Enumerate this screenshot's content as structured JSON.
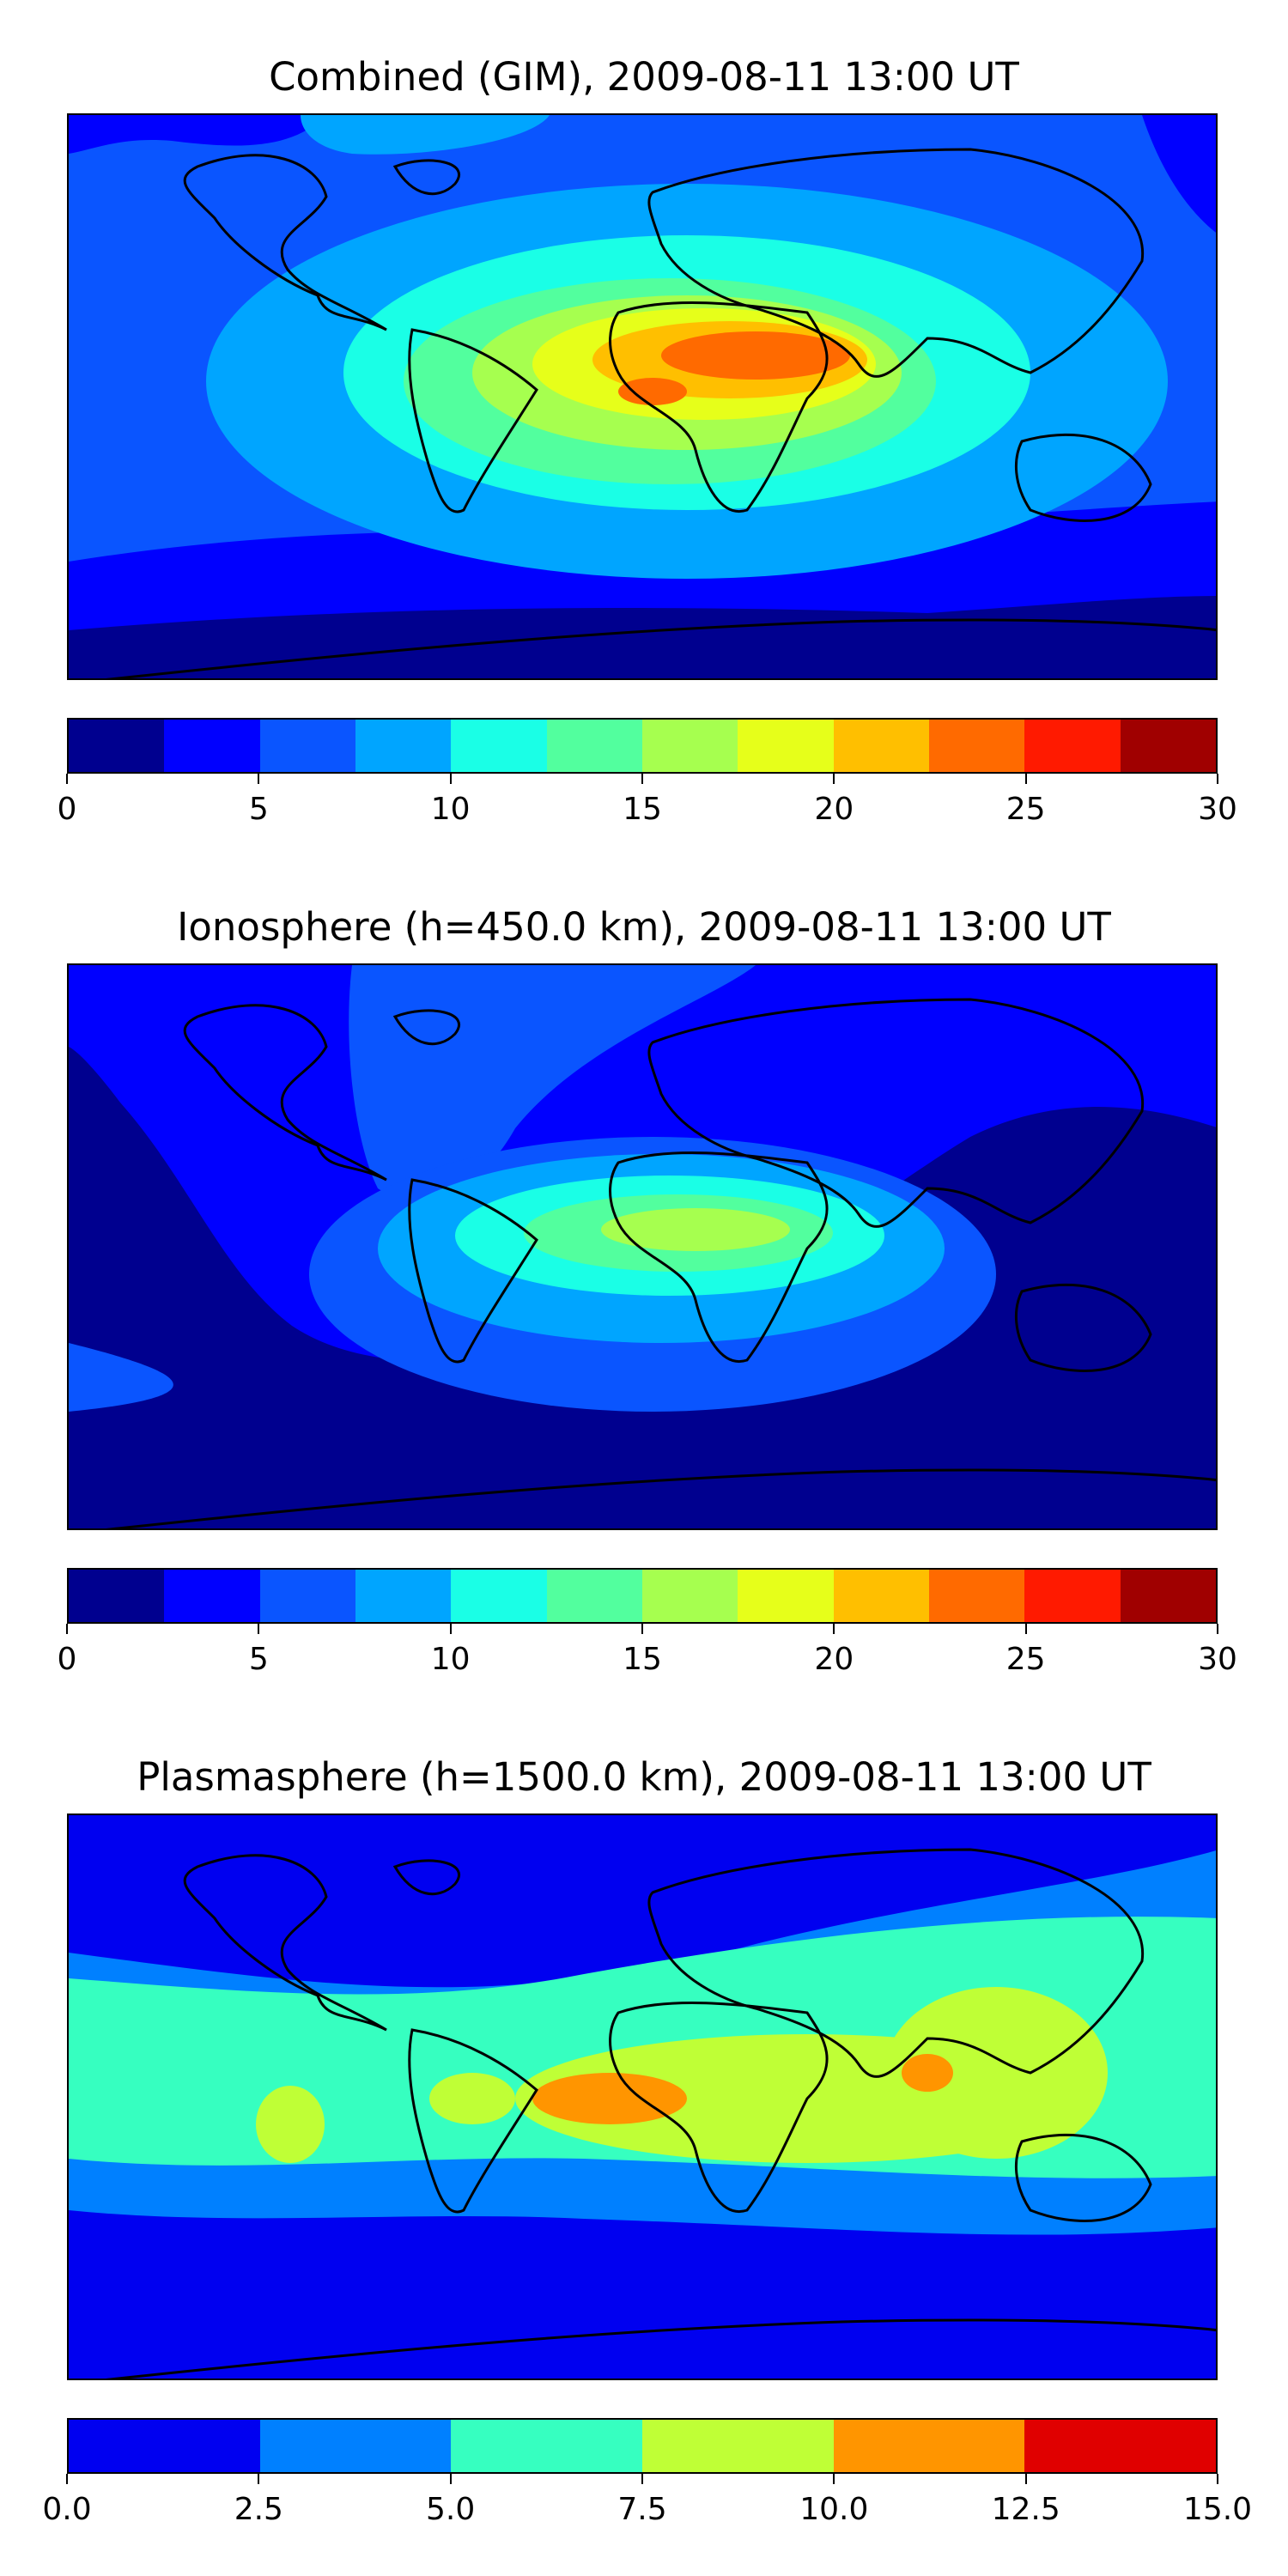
{
  "panels": [
    {
      "title": "Combined (GIM), 2009-08-11 13:00 UT",
      "colorbar": {
        "vmin": 0,
        "vmax": 30,
        "levels": [
          0,
          2.5,
          5,
          7.5,
          10,
          12.5,
          15,
          17.5,
          20,
          22.5,
          25,
          27.5,
          30
        ],
        "colors": [
          "#00008f",
          "#0000ff",
          "#0a55ff",
          "#00a5ff",
          "#1affe6",
          "#52ff9e",
          "#a6ff4f",
          "#e6ff1a",
          "#ffbf00",
          "#ff6a00",
          "#ff1a00",
          "#a00000"
        ],
        "tick_labels": [
          "0",
          "5",
          "10",
          "15",
          "20",
          "25",
          "30"
        ]
      }
    },
    {
      "title": "Ionosphere  (h=450.0 km), 2009-08-11 13:00 UT",
      "colorbar": {
        "vmin": 0,
        "vmax": 30,
        "levels": [
          0,
          2.5,
          5,
          7.5,
          10,
          12.5,
          15,
          17.5,
          20,
          22.5,
          25,
          27.5,
          30
        ],
        "colors": [
          "#00008f",
          "#0000ff",
          "#0a55ff",
          "#00a5ff",
          "#1affe6",
          "#52ff9e",
          "#a6ff4f",
          "#e6ff1a",
          "#ffbf00",
          "#ff6a00",
          "#ff1a00",
          "#a00000"
        ],
        "tick_labels": [
          "0",
          "5",
          "10",
          "15",
          "20",
          "25",
          "30"
        ]
      }
    },
    {
      "title": "Plasmasphere (h=1500.0 km), 2009-08-11 13:00 UT",
      "colorbar": {
        "vmin": 0,
        "vmax": 15,
        "levels": [
          0,
          2.5,
          5,
          7.5,
          10,
          12.5,
          15
        ],
        "colors": [
          "#0000f0",
          "#0080ff",
          "#36ffc0",
          "#bfff36",
          "#ff9500",
          "#e00000"
        ],
        "tick_labels": [
          "0.0",
          "2.5",
          "5.0",
          "7.5",
          "10.0",
          "12.5",
          "15.0"
        ]
      }
    }
  ]
}
